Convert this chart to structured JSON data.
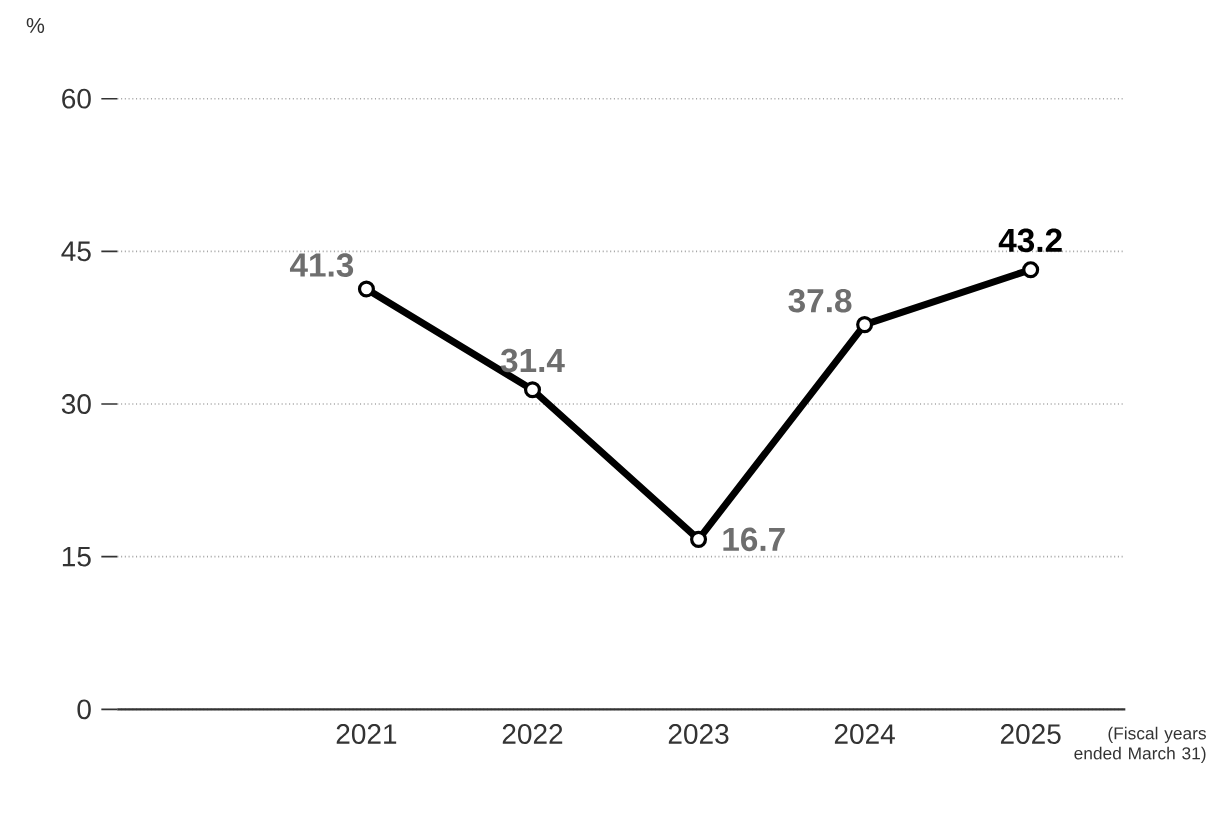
{
  "chart_data": {
    "type": "line",
    "ylabel": "%",
    "categories": [
      "2021",
      "2022",
      "2023",
      "2024",
      "2025"
    ],
    "series": [
      {
        "color": "#000000",
        "values": [
          41.3,
          31.4,
          16.7,
          37.8,
          43.2
        ]
      }
    ],
    "ylim": [
      0,
      60
    ],
    "yticks": [
      0,
      15,
      30,
      45,
      60
    ],
    "grid": "y",
    "marker": "circle",
    "line_style": "solid",
    "data_labels": true,
    "annotations": [
      "(Fiscal years ended March 31)"
    ]
  }
}
